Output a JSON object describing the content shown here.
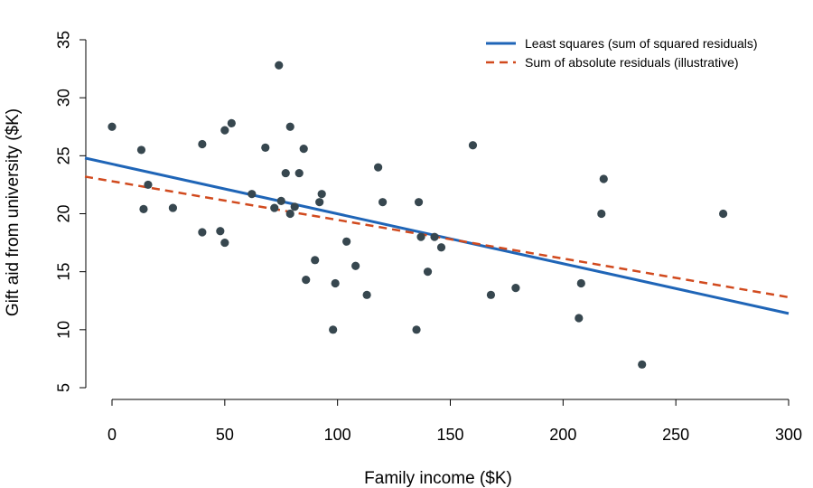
{
  "chart_data": {
    "type": "scatter",
    "xlabel": "Family income ($K)",
    "ylabel": "Gift aid from university ($K)",
    "xlim": [
      -12,
      302
    ],
    "ylim": [
      5,
      35
    ],
    "x_ticks": [
      0,
      50,
      100,
      150,
      200,
      250,
      300
    ],
    "y_ticks": [
      5,
      10,
      15,
      20,
      25,
      30,
      35
    ],
    "grid": false,
    "legend_position": "top-right",
    "colors": {
      "points": "#37474f",
      "least_squares": "#1f65b7",
      "absolute": "#d14a1e"
    },
    "points": [
      {
        "x": 0,
        "y": 27.5
      },
      {
        "x": 13,
        "y": 25.5
      },
      {
        "x": 14,
        "y": 20.4
      },
      {
        "x": 16,
        "y": 22.5
      },
      {
        "x": 27,
        "y": 20.5
      },
      {
        "x": 40,
        "y": 18.4
      },
      {
        "x": 40,
        "y": 26.0
      },
      {
        "x": 48,
        "y": 18.5
      },
      {
        "x": 50,
        "y": 17.5
      },
      {
        "x": 50,
        "y": 27.2
      },
      {
        "x": 53,
        "y": 27.8
      },
      {
        "x": 62,
        "y": 21.7
      },
      {
        "x": 68,
        "y": 25.7
      },
      {
        "x": 72,
        "y": 20.5
      },
      {
        "x": 74,
        "y": 32.8
      },
      {
        "x": 75,
        "y": 21.1
      },
      {
        "x": 77,
        "y": 23.5
      },
      {
        "x": 79,
        "y": 20.0
      },
      {
        "x": 79,
        "y": 27.5
      },
      {
        "x": 81,
        "y": 20.6
      },
      {
        "x": 83,
        "y": 23.5
      },
      {
        "x": 85,
        "y": 25.6
      },
      {
        "x": 86,
        "y": 14.3
      },
      {
        "x": 90,
        "y": 16.0
      },
      {
        "x": 92,
        "y": 21.0
      },
      {
        "x": 93,
        "y": 21.7
      },
      {
        "x": 98,
        "y": 10.0
      },
      {
        "x": 99,
        "y": 14.0
      },
      {
        "x": 104,
        "y": 17.6
      },
      {
        "x": 108,
        "y": 15.5
      },
      {
        "x": 113,
        "y": 13.0
      },
      {
        "x": 118,
        "y": 24.0
      },
      {
        "x": 120,
        "y": 21.0
      },
      {
        "x": 135,
        "y": 10.0
      },
      {
        "x": 136,
        "y": 21.0
      },
      {
        "x": 137,
        "y": 18.0
      },
      {
        "x": 140,
        "y": 15.0
      },
      {
        "x": 143,
        "y": 18.0
      },
      {
        "x": 146,
        "y": 17.1
      },
      {
        "x": 160,
        "y": 25.9
      },
      {
        "x": 168,
        "y": 13.0
      },
      {
        "x": 179,
        "y": 13.6
      },
      {
        "x": 207,
        "y": 11.0
      },
      {
        "x": 208,
        "y": 14.0
      },
      {
        "x": 217,
        "y": 20.0
      },
      {
        "x": 218,
        "y": 23.0
      },
      {
        "x": 235,
        "y": 7.0
      },
      {
        "x": 271,
        "y": 20.0
      }
    ],
    "series": [
      {
        "name": "Least squares (sum of squared residuals)",
        "style": "solid",
        "x": [
          -12,
          300
        ],
        "y": [
          24.8,
          11.4
        ]
      },
      {
        "name": "Sum of absolute residuals (illustrative)",
        "style": "dashed",
        "x": [
          -12,
          300
        ],
        "y": [
          23.2,
          12.8
        ]
      }
    ]
  }
}
